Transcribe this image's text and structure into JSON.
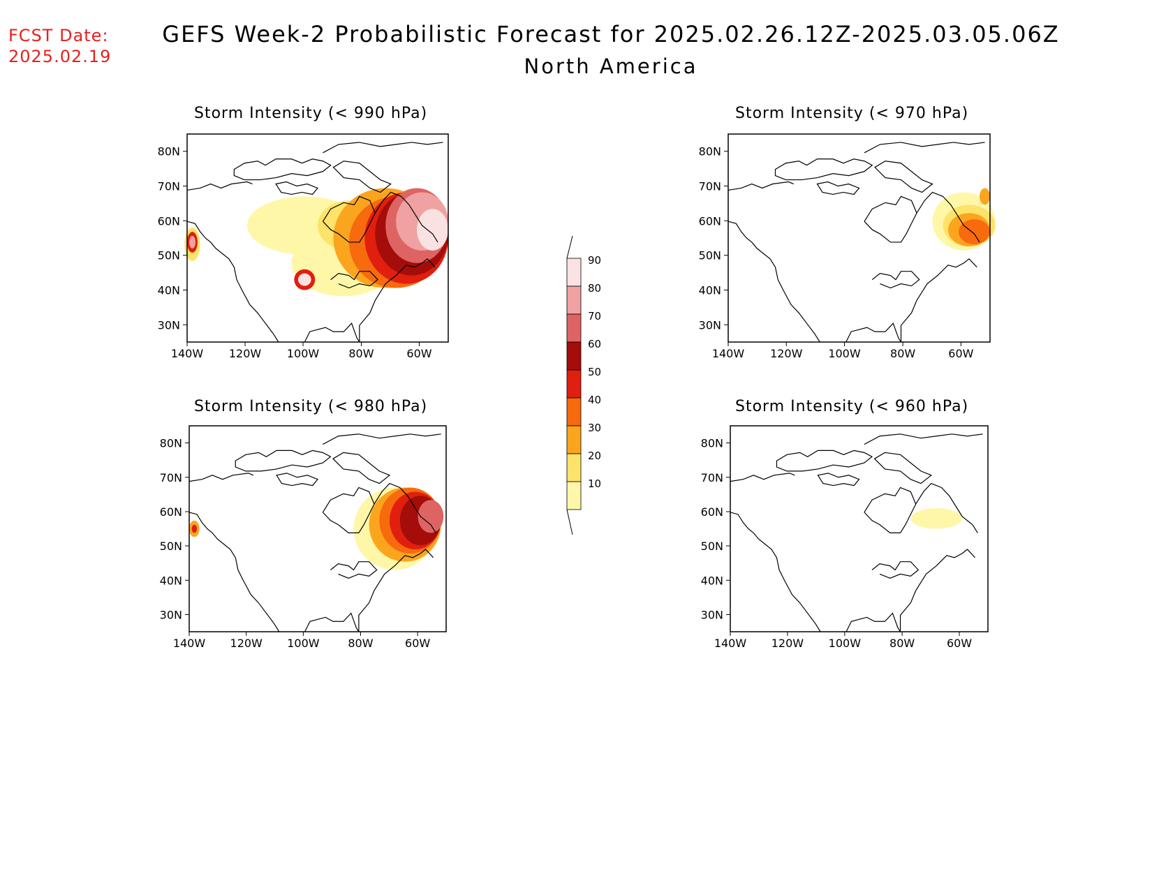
{
  "fcst": {
    "line1": "FCST Date:",
    "line2": "2025.02.19"
  },
  "header": {
    "title": "GEFS Week-2 Probabilistic Forecast for 2025.02.26.12Z-2025.03.05.06Z",
    "region": "North America"
  },
  "colors": {
    "p10": "#fff7a8",
    "p20": "#fde36a",
    "p30": "#fba51e",
    "p40": "#f76a0e",
    "p50": "#e01f0e",
    "p60": "#a40d0a",
    "p70": "#de6464",
    "p80": "#f0a2a2",
    "p90": "#fbe2e2"
  },
  "colorbar": {
    "labels": [
      "90",
      "80",
      "70",
      "60",
      "50",
      "40",
      "30",
      "20",
      "10"
    ]
  },
  "axes": {
    "lat_labels": [
      "80N",
      "70N",
      "60N",
      "50N",
      "40N",
      "30N"
    ],
    "lon_labels": [
      "140W",
      "120W",
      "100W",
      "80W",
      "60W"
    ]
  },
  "panels": [
    {
      "id": "p990",
      "title": "Storm Intensity (< 990 hPa)"
    },
    {
      "id": "p970",
      "title": "Storm Intensity (< 970 hPa)"
    },
    {
      "id": "p980",
      "title": "Storm Intensity (< 980 hPa)"
    },
    {
      "id": "p960",
      "title": "Storm Intensity (< 960 hPa)"
    }
  ]
}
